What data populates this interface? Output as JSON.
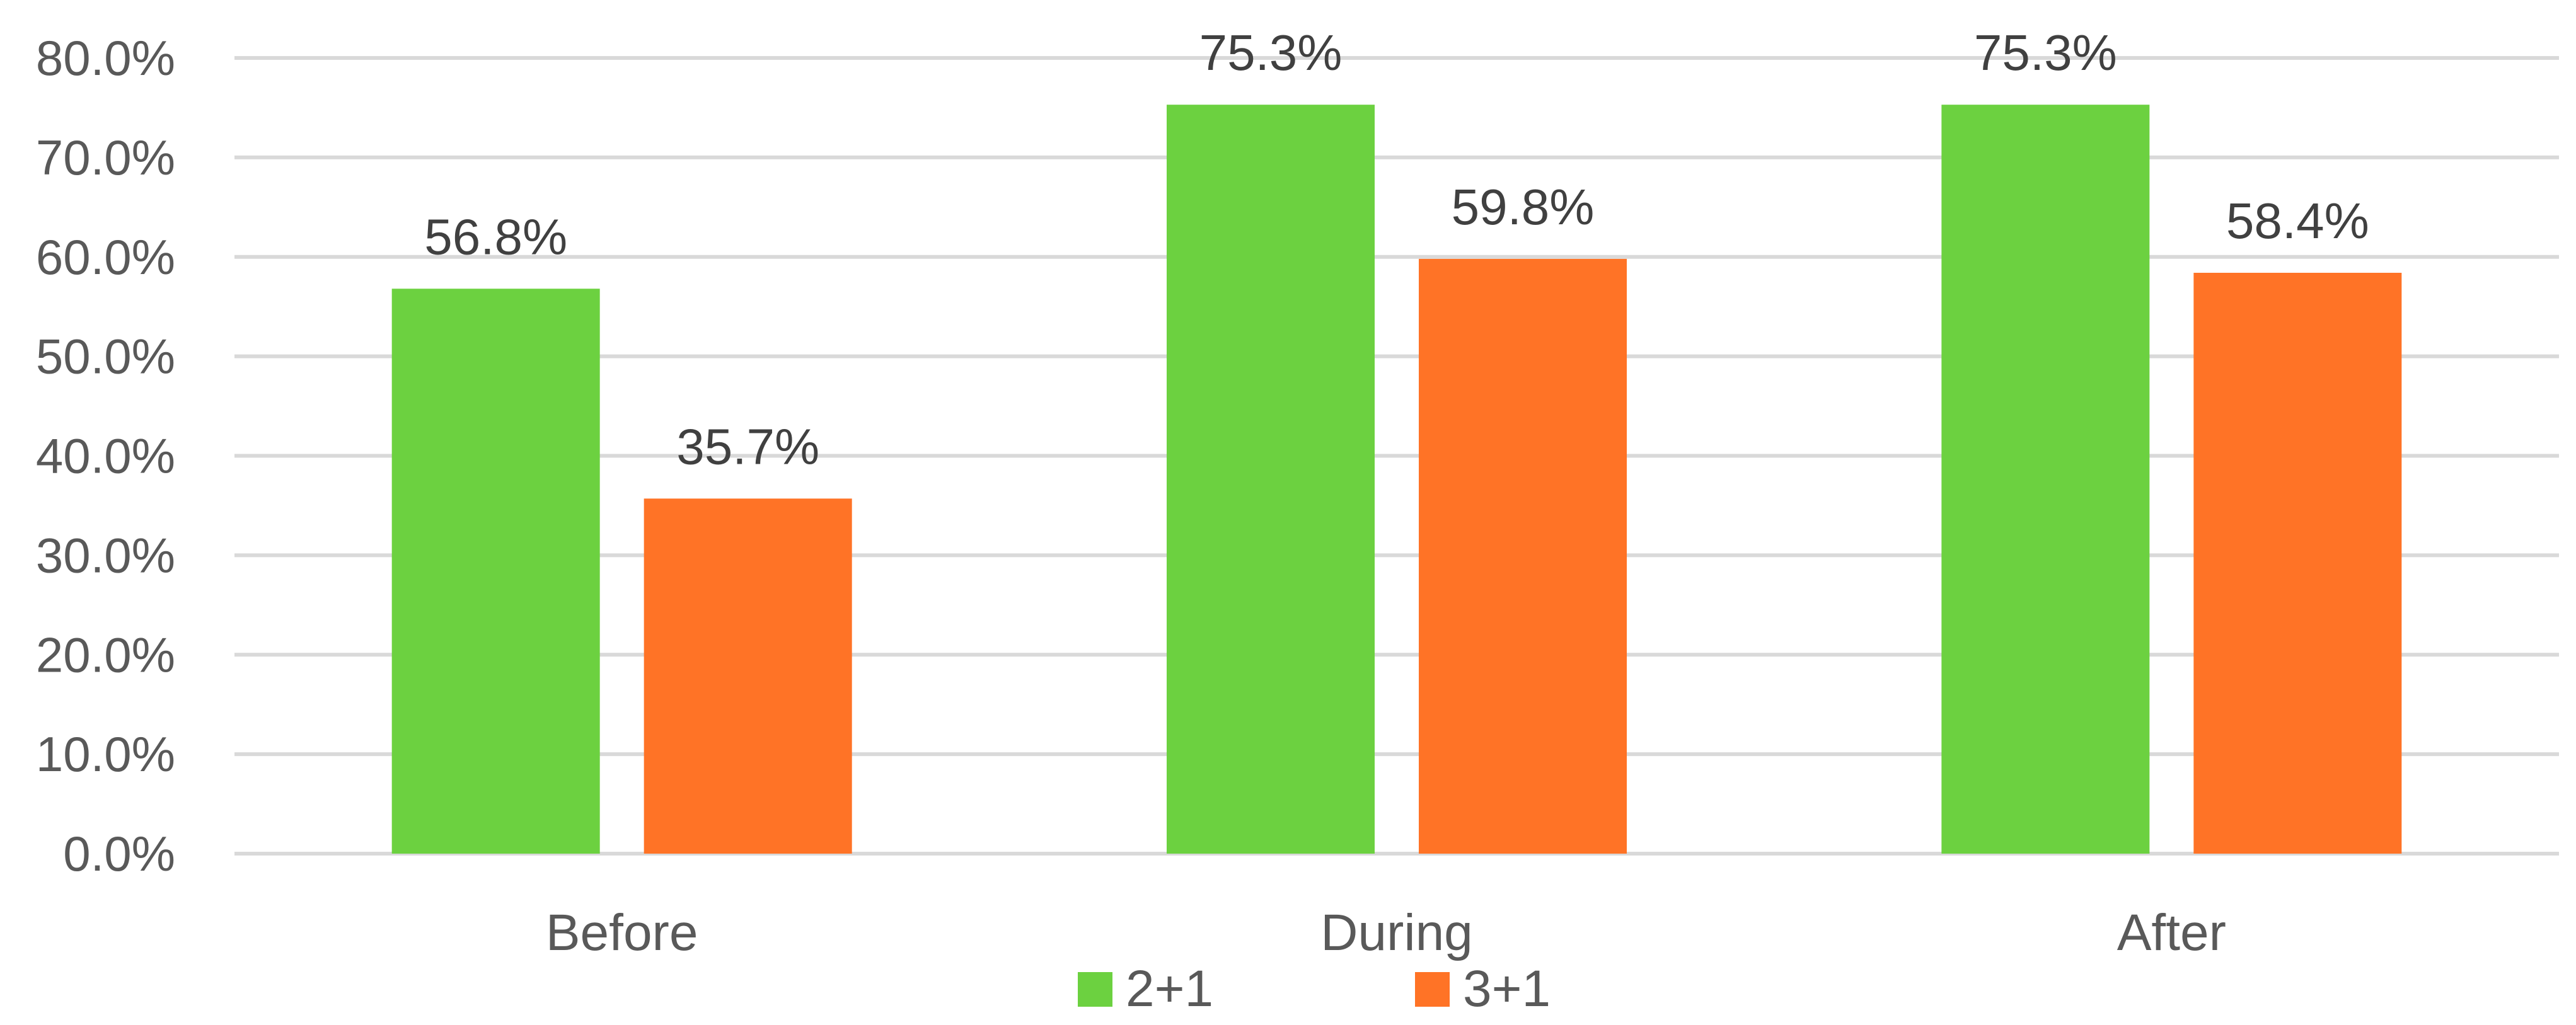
{
  "chart_data": {
    "type": "bar",
    "categories": [
      "Before",
      "During",
      "After"
    ],
    "series": [
      {
        "name": "2+1",
        "values": [
          56.8,
          75.3,
          75.3
        ],
        "labels": [
          "56.8%",
          "75.3%",
          "75.3%"
        ],
        "color": "#6cd140"
      },
      {
        "name": "3+1",
        "values": [
          35.7,
          59.8,
          58.4
        ],
        "labels": [
          "35.7%",
          "59.8%",
          "58.4%"
        ],
        "color": "#ff7326"
      }
    ],
    "ylim": [
      0,
      80
    ],
    "yticks": [
      0,
      10,
      20,
      30,
      40,
      50,
      60,
      70,
      80
    ],
    "ytick_labels": [
      "0.0%",
      "10.0%",
      "20.0%",
      "30.0%",
      "40.0%",
      "50.0%",
      "60.0%",
      "70.0%",
      "80.0%"
    ],
    "grid": true,
    "legend_position": "bottom",
    "title": "",
    "xlabel": "",
    "ylabel": ""
  }
}
